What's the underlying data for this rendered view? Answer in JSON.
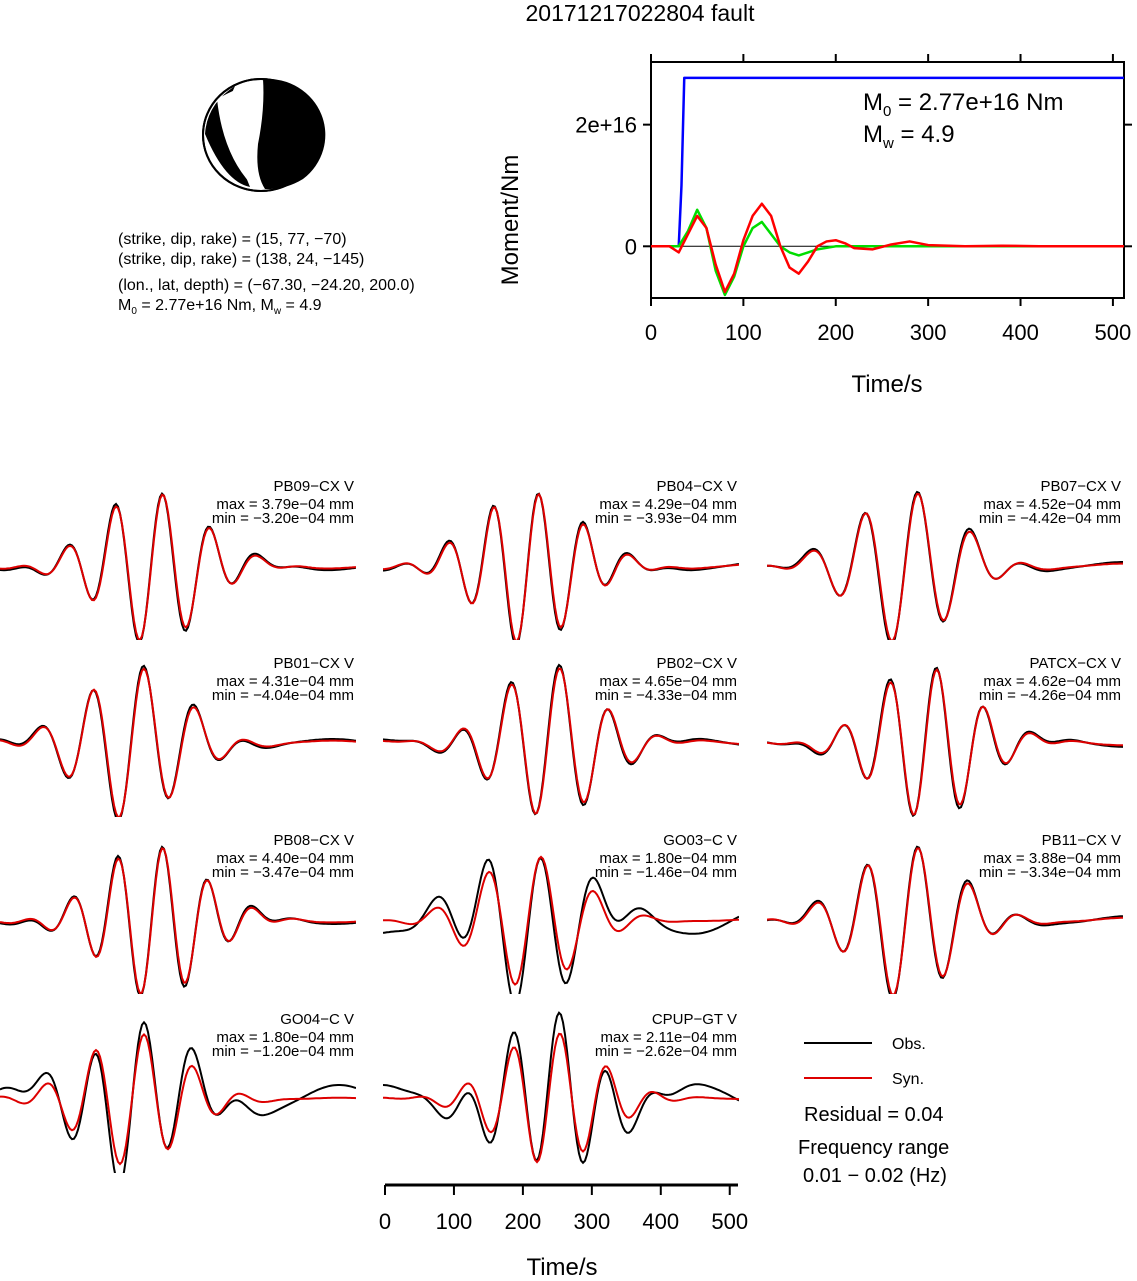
{
  "title": "20171217022804 fault",
  "mechanism": {
    "line1": "(strike, dip, rake) = (15, 77, −70)",
    "line2": "(strike, dip, rake) = (138, 24, −145)",
    "line3": "(lon., lat, depth) = (−67.30, −24.20, 200.0)",
    "line4_prefix": "M",
    "line4_sub": "0",
    "line4_rest": " = 2.77e+16 Nm, M",
    "line4_sub2": "w",
    "line4_end": " = 4.9"
  },
  "moment_plot": {
    "ylabel": "Moment/Nm",
    "xlabel": "Time/s",
    "yticks": [
      "0",
      "2e+16"
    ],
    "xticks": [
      "0",
      "100",
      "200",
      "300",
      "400",
      "500"
    ],
    "annot_m0_prefix": "M",
    "annot_m0_sub": "0",
    "annot_m0_rest": " = 2.77e+16 Nm",
    "annot_mw_prefix": "M",
    "annot_mw_sub": "w",
    "annot_mw_rest": " = 4.9"
  },
  "chart_data": [
    {
      "type": "line",
      "xlabel": "Time/s",
      "ylabel": "Moment/Nm",
      "xlim": [
        0,
        512
      ],
      "ylim": [
        -8500000000000000.0,
        3.03e+16
      ],
      "series": [
        {
          "color": "#0000ff",
          "x": [
            0,
            30,
            33,
            36,
            512
          ],
          "y": [
            0,
            0,
            1e+16,
            2.77e+16,
            2.77e+16
          ]
        },
        {
          "color": "#00dd00",
          "x": [
            0,
            30,
            40,
            50,
            60,
            70,
            80,
            90,
            100,
            110,
            120,
            130,
            140,
            150,
            160,
            170,
            180,
            200,
            230,
            260,
            300,
            512
          ],
          "y": [
            0,
            0,
            2500000000000000.0,
            6000000000000000.0,
            3000000000000000.0,
            -4000000000000000.0,
            -8000000000000000.0,
            -5000000000000000.0,
            0,
            3000000000000000.0,
            4000000000000000.0,
            2000000000000000.0,
            0,
            -1000000000000000.0,
            -1500000000000000.0,
            -1000000000000000.0,
            -500000000000000.0,
            0,
            0,
            0,
            0,
            0
          ]
        },
        {
          "color": "#ff0000",
          "x": [
            0,
            20,
            30,
            40,
            50,
            60,
            70,
            80,
            90,
            100,
            110,
            120,
            130,
            140,
            150,
            160,
            170,
            180,
            190,
            200,
            210,
            220,
            240,
            260,
            280,
            300,
            340,
            380,
            420,
            512
          ],
          "y": [
            0,
            0,
            -1000000000000000.0,
            2000000000000000.0,
            5000000000000000.0,
            3000000000000000.0,
            -3000000000000000.0,
            -7500000000000000.0,
            -4500000000000000.0,
            1000000000000000.0,
            5000000000000000.0,
            7000000000000000.0,
            5000000000000000.0,
            0,
            -3500000000000000.0,
            -4500000000000000.0,
            -2500000000000000.0,
            0,
            800000000000000.0,
            1000000000000000.0,
            500000000000000.0,
            -300000000000000.0,
            -500000000000000.0,
            300000000000000.0,
            800000000000000.0,
            200000000000000.0,
            0,
            100000000000000.0,
            0,
            0
          ]
        }
      ]
    }
  ],
  "traces": [
    {
      "station": "PB09−CX V",
      "max": "max = 3.79e−04 mm",
      "min": "min = −3.20e−04 mm",
      "seed": 1
    },
    {
      "station": "PB04−CX V",
      "max": "max = 4.29e−04 mm",
      "min": "min = −3.93e−04 mm",
      "seed": 2
    },
    {
      "station": "PB07−CX V",
      "max": "max = 4.52e−04 mm",
      "min": "min = −4.42e−04 mm",
      "seed": 3
    },
    {
      "station": "PB01−CX V",
      "max": "max = 4.31e−04 mm",
      "min": "min = −4.04e−04 mm",
      "seed": 4
    },
    {
      "station": "PB02−CX V",
      "max": "max = 4.65e−04 mm",
      "min": "min = −4.33e−04 mm",
      "seed": 5
    },
    {
      "station": "PATCX−CX V",
      "max": "max = 4.62e−04 mm",
      "min": "min = −4.26e−04 mm",
      "seed": 6
    },
    {
      "station": "PB08−CX V",
      "max": "max = 4.40e−04 mm",
      "min": "min = −3.47e−04 mm",
      "seed": 7
    },
    {
      "station": "GO03−C V",
      "max": "max = 1.80e−04 mm",
      "min": "min = −1.46e−04 mm",
      "seed": 8
    },
    {
      "station": "PB11−CX V",
      "max": "max = 3.88e−04 mm",
      "min": "min = −3.34e−04 mm",
      "seed": 9
    },
    {
      "station": "GO04−C V",
      "max": "max = 1.80e−04 mm",
      "min": "min = −1.20e−04 mm",
      "seed": 10
    },
    {
      "station": "CPUP−GT V",
      "max": "max = 2.11e−04 mm",
      "min": "min = −2.62e−04 mm",
      "seed": 11
    }
  ],
  "trace_axis": {
    "xlabel": "Time/s",
    "xticks": [
      "0",
      "100",
      "200",
      "300",
      "400",
      "500"
    ]
  },
  "legend": {
    "obs": "Obs.",
    "syn": "Syn.",
    "obs_color": "#000000",
    "syn_color": "#dd0000"
  },
  "residual": "Residual = 0.04",
  "freq_label": "Frequency range",
  "freq_value": "0.01 − 0.02 (Hz)"
}
